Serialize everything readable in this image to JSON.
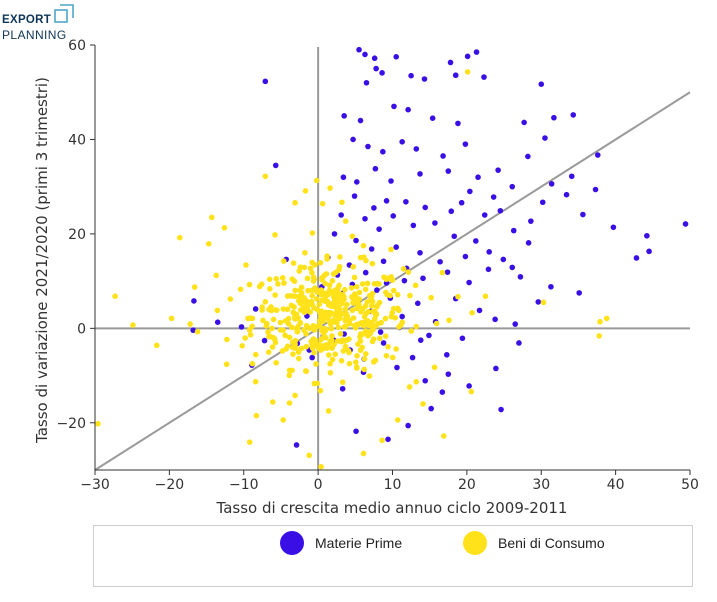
{
  "logo": {
    "line1": "EXPORT",
    "line2": "PLANNING",
    "color": "#0f3557",
    "accent": "#4fa6c9"
  },
  "chart_data": {
    "type": "scatter",
    "xlabel": "Tasso di crescita medio annuo ciclo 2009-2011",
    "ylabel": "Tasso di variazione 2021/2020 (primi 3 trimestri)",
    "xlim": [
      -30,
      50
    ],
    "ylim": [
      -30,
      60
    ],
    "xticks": [
      -30,
      -20,
      -10,
      0,
      10,
      20,
      30,
      40,
      50
    ],
    "yticks": [
      -20,
      0,
      20,
      40,
      60
    ],
    "xtick_labels": [
      "−30",
      "−20",
      "−10",
      "0",
      "10",
      "20",
      "30",
      "40",
      "50"
    ],
    "ytick_labels": [
      "−20",
      "0",
      "20",
      "40",
      "60"
    ],
    "reference_line": {
      "x": [
        -30,
        50
      ],
      "y": [
        -30,
        50
      ]
    },
    "legend_position": "bottom",
    "series": [
      {
        "name": "Materie Prime",
        "color": "#3a0fe6",
        "points": [
          [
            5.5,
            59
          ],
          [
            6.3,
            58
          ],
          [
            7.6,
            57.2
          ],
          [
            10.5,
            57.5
          ],
          [
            17.8,
            56.3
          ],
          [
            20.1,
            57.6
          ],
          [
            21.3,
            58.5
          ],
          [
            6.5,
            52
          ],
          [
            7.8,
            55
          ],
          [
            8.6,
            54.1
          ],
          [
            12.5,
            53.5
          ],
          [
            14.3,
            52.8
          ],
          [
            18.5,
            53.6
          ],
          [
            22.3,
            53.2
          ],
          [
            30,
            51.7
          ],
          [
            -7.1,
            52.3
          ],
          [
            3.5,
            45
          ],
          [
            5.7,
            44
          ],
          [
            10.2,
            47
          ],
          [
            12.1,
            46.3
          ],
          [
            15.4,
            44.5
          ],
          [
            18.8,
            43.4
          ],
          [
            4.7,
            40
          ],
          [
            6.7,
            38.5
          ],
          [
            8.7,
            37.4
          ],
          [
            11.3,
            39.5
          ],
          [
            13.2,
            38
          ],
          [
            16.8,
            36.5
          ],
          [
            19.8,
            39
          ],
          [
            28.2,
            36.4
          ],
          [
            30.5,
            40.3
          ],
          [
            34.3,
            45.2
          ],
          [
            37.6,
            36.7
          ],
          [
            27.7,
            43.6
          ],
          [
            31.7,
            44.6
          ],
          [
            -5.7,
            34.5
          ],
          [
            3.4,
            32
          ],
          [
            5.2,
            31
          ],
          [
            7.7,
            33.8
          ],
          [
            9.8,
            31.2
          ],
          [
            13.7,
            32.7
          ],
          [
            17.5,
            33.3
          ],
          [
            21.5,
            32
          ],
          [
            24.2,
            33.5
          ],
          [
            26.1,
            30
          ],
          [
            20.4,
            29
          ],
          [
            23.6,
            27.8
          ],
          [
            31.4,
            30.6
          ],
          [
            34.1,
            32.2
          ],
          [
            37.3,
            29.4
          ],
          [
            4.9,
            28
          ],
          [
            7.5,
            25.5
          ],
          [
            9.2,
            27
          ],
          [
            11.8,
            26.8
          ],
          [
            14.4,
            25.6
          ],
          [
            17.9,
            24.8
          ],
          [
            19.3,
            26.6
          ],
          [
            22.4,
            24
          ],
          [
            28.6,
            22.7
          ],
          [
            30.2,
            26.7
          ],
          [
            33.4,
            28.3
          ],
          [
            35.6,
            24.1
          ],
          [
            39.7,
            21.4
          ],
          [
            42.8,
            14.9
          ],
          [
            44.5,
            16.3
          ],
          [
            49.4,
            22.1
          ],
          [
            44.2,
            19.6
          ],
          [
            3.1,
            24
          ],
          [
            6.3,
            23.2
          ],
          [
            8.2,
            21
          ],
          [
            10.1,
            23.8
          ],
          [
            12.8,
            21.8
          ],
          [
            15.7,
            22.3
          ],
          [
            24.5,
            24.9
          ],
          [
            26.3,
            20.7
          ],
          [
            28.3,
            18.1
          ],
          [
            23,
            16.2
          ],
          [
            21.2,
            18.5
          ],
          [
            18.3,
            19.5
          ],
          [
            2.2,
            20
          ],
          [
            5.1,
            18.6
          ],
          [
            7.2,
            16.8
          ],
          [
            10.5,
            17.2
          ],
          [
            13.7,
            16
          ],
          [
            16.4,
            14.1
          ],
          [
            19.8,
            15.2
          ],
          [
            22.9,
            12.5
          ],
          [
            1.3,
            15
          ],
          [
            4.2,
            13.4
          ],
          [
            6.4,
            11.8
          ],
          [
            8.8,
            14.2
          ],
          [
            11.9,
            12.7
          ],
          [
            14.1,
            10.6
          ],
          [
            17.4,
            11.9
          ],
          [
            20.3,
            9.7
          ],
          [
            24.9,
            14.6
          ],
          [
            27.2,
            10.9
          ],
          [
            31.3,
            8.8
          ],
          [
            35.1,
            7.5
          ],
          [
            26.1,
            12.9
          ],
          [
            29.6,
            5.6
          ],
          [
            -4.3,
            14.6
          ],
          [
            -16.7,
            5.8
          ],
          [
            -13.5,
            1.3
          ],
          [
            -8.4,
            4.1
          ],
          [
            -10.3,
            0.3
          ],
          [
            -7.2,
            -2.6
          ],
          [
            -16.8,
            -0.4
          ],
          [
            -8.9,
            -7.8
          ],
          [
            -2.8,
            -3.2
          ],
          [
            -1.2,
            -4.6
          ],
          [
            3.2,
            7.4
          ],
          [
            5.4,
            5.7
          ],
          [
            7.1,
            3.6
          ],
          [
            9.7,
            6.4
          ],
          [
            11.3,
            2.5
          ],
          [
            13.4,
            5.3
          ],
          [
            15.8,
            1.4
          ],
          [
            18.5,
            6.3
          ],
          [
            21.7,
            3.8
          ],
          [
            23.8,
            1.9
          ],
          [
            26.5,
            0.9
          ],
          [
            2.1,
            -2.5
          ],
          [
            4.3,
            -4.6
          ],
          [
            6.2,
            -6.5
          ],
          [
            8.8,
            -3.1
          ],
          [
            10.6,
            -8.3
          ],
          [
            12.7,
            -6.2
          ],
          [
            14.4,
            -11.1
          ],
          [
            17.3,
            -5.6
          ],
          [
            19.4,
            -2.1
          ],
          [
            15.2,
            -17
          ],
          [
            12.1,
            -20.6
          ],
          [
            9.4,
            -23.5
          ],
          [
            5.1,
            -21.8
          ],
          [
            -2.9,
            -24.7
          ],
          [
            24.6,
            -17.2
          ],
          [
            16.7,
            -13.5
          ],
          [
            3.5,
            -1.2
          ],
          [
            6.8,
            1.1
          ],
          [
            1.9,
            4.8
          ],
          [
            9.2,
            9.6
          ],
          [
            4.6,
            9.3
          ],
          [
            0.7,
            -1.6
          ],
          [
            -1.5,
            2.6
          ],
          [
            0.5,
            8.8
          ],
          [
            2.6,
            11.3
          ],
          [
            7.9,
            8.1
          ],
          [
            11.6,
            10.1
          ],
          [
            8.4,
            -0.8
          ],
          [
            10.9,
            0.2
          ],
          [
            13.8,
            -2.5
          ],
          [
            6.1,
            -9.3
          ],
          [
            3.3,
            -12.8
          ],
          [
            27,
            -3.1
          ],
          [
            23.9,
            -8.5
          ],
          [
            20.3,
            -12.2
          ],
          [
            17.5,
            -9.7
          ],
          [
            14.9,
            -1.5
          ],
          [
            -0.8,
            -6.2
          ]
        ]
      },
      {
        "name": "Beni di Consumo",
        "color": "#ffe21a",
        "points": [
          [
            20.1,
            54.3
          ],
          [
            -7.1,
            32.2
          ],
          [
            -1.7,
            29.1
          ],
          [
            -0.2,
            31.3
          ],
          [
            1.6,
            29.7
          ],
          [
            -3.1,
            26.6
          ],
          [
            0.6,
            26.4
          ],
          [
            3.2,
            26.7
          ],
          [
            -14.3,
            23.5
          ],
          [
            -18.6,
            19.2
          ],
          [
            -14.7,
            17.9
          ],
          [
            -12.6,
            21.3
          ],
          [
            -5.8,
            19.8
          ],
          [
            -27.3,
            6.8
          ],
          [
            -29.6,
            -20.2
          ],
          [
            -19.7,
            2.1
          ],
          [
            -16.2,
            -0.7
          ],
          [
            -13.7,
            11.2
          ],
          [
            -11.8,
            6.2
          ],
          [
            -9.7,
            13.4
          ],
          [
            -10.2,
            -3.7
          ],
          [
            -12.3,
            -7.6
          ],
          [
            -8.4,
            -11.3
          ],
          [
            -6.1,
            -15.6
          ],
          [
            -4.7,
            -19.4
          ],
          [
            -3.1,
            -14.2
          ],
          [
            -9.2,
            -24.1
          ],
          [
            -8.3,
            -18.5
          ],
          [
            -1.6,
            -9.1
          ],
          [
            0.3,
            -13.2
          ],
          [
            1.4,
            -17.5
          ],
          [
            3.3,
            -11.4
          ],
          [
            5.2,
            -8.2
          ],
          [
            7.7,
            -6.8
          ],
          [
            9.4,
            -3.9
          ],
          [
            8.6,
            -23.7
          ],
          [
            10.7,
            -19.4
          ],
          [
            14.1,
            -16
          ],
          [
            12.3,
            -12.4
          ],
          [
            6.1,
            -26.5
          ],
          [
            0.4,
            -29.3
          ],
          [
            -1.2,
            -26.9
          ],
          [
            16.9,
            -22.8
          ],
          [
            20.6,
            -13.4
          ],
          [
            30.3,
            5.5
          ],
          [
            37.9,
            1.4
          ],
          [
            38.8,
            2.1
          ],
          [
            37.8,
            -1.6
          ],
          [
            -17.2,
            0.9
          ],
          [
            -21.7,
            -3.6
          ],
          [
            -24.9,
            0.7
          ],
          [
            -6.6,
            4
          ],
          [
            -5.4,
            9.4
          ],
          [
            -3.3,
            13.8
          ],
          [
            -2.1,
            6.5
          ],
          [
            -0.6,
            10.8
          ],
          [
            1.2,
            15.3
          ],
          [
            2.8,
            12.4
          ],
          [
            4.6,
            19.5
          ],
          [
            3.7,
            22.7
          ],
          [
            6.1,
            17.5
          ],
          [
            7.3,
            13.7
          ],
          [
            8.2,
            9.4
          ],
          [
            9.8,
            16.7
          ],
          [
            11.5,
            12.6
          ],
          [
            13.1,
            9.1
          ],
          [
            15.2,
            6.5
          ],
          [
            16.7,
            11.8
          ],
          [
            18.8,
            6.7
          ],
          [
            20.7,
            3.3
          ],
          [
            22.5,
            6.8
          ],
          [
            17.6,
            1.7
          ],
          [
            -4.1,
            -3.8
          ],
          [
            -2.6,
            -6.4
          ],
          [
            -0.5,
            -3.1
          ],
          [
            1.6,
            -7.5
          ],
          [
            3.4,
            -4.8
          ],
          [
            5.7,
            -2.7
          ],
          [
            6.9,
            -10.1
          ]
        ],
        "cluster": {
          "center": [
            1.5,
            2.5
          ],
          "spread": [
            5.2,
            5.4
          ],
          "count": 420
        }
      }
    ]
  }
}
